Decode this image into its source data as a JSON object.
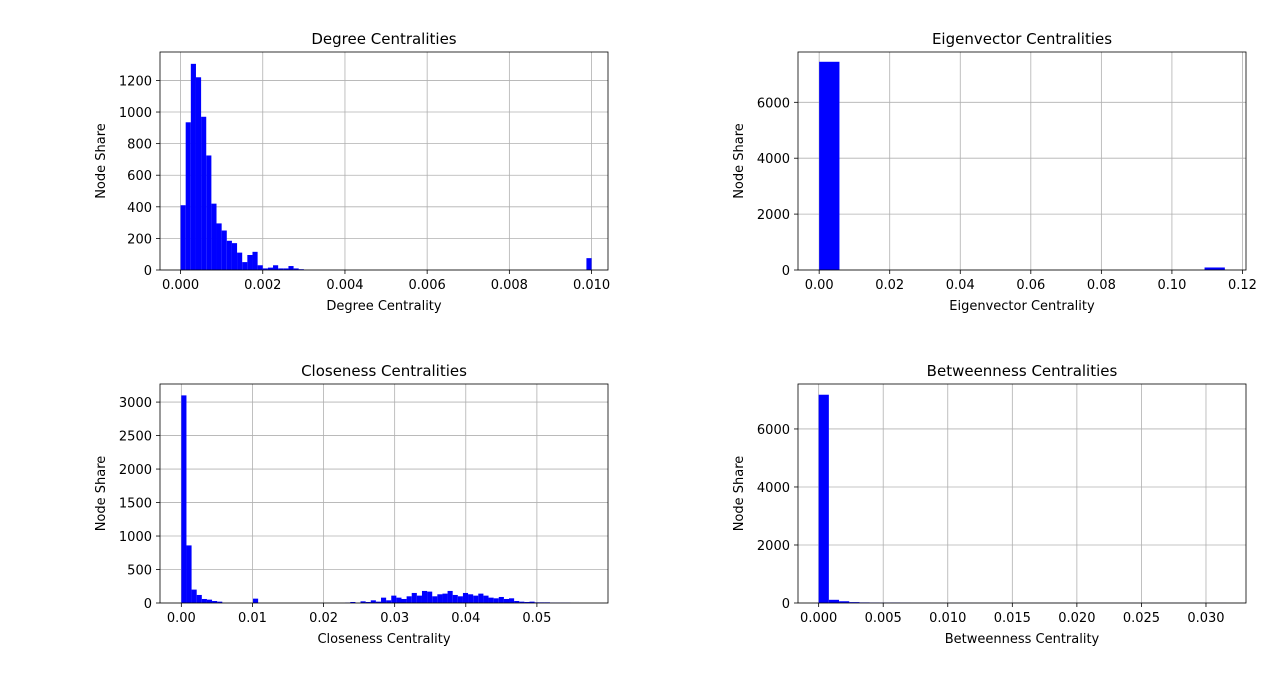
{
  "chart_data": [
    {
      "type": "bar",
      "title": "Degree Centralities",
      "xlabel": "Degree Centrality",
      "ylabel": "Node Share",
      "xlim": [
        -0.0005,
        0.0104
      ],
      "ylim": [
        0,
        1380
      ],
      "xticks": [
        0.0,
        0.002,
        0.004,
        0.006,
        0.008,
        0.01
      ],
      "xtick_labels": [
        "0.000",
        "0.002",
        "0.004",
        "0.006",
        "0.008",
        "0.010"
      ],
      "yticks": [
        0,
        200,
        400,
        600,
        800,
        1000,
        1200
      ],
      "ytick_labels": [
        "0",
        "200",
        "400",
        "600",
        "800",
        "1000",
        "1200"
      ],
      "grid": true,
      "bin_start": 0.0,
      "bin_width": 0.000125,
      "values": [
        410,
        935,
        1305,
        1220,
        970,
        725,
        420,
        295,
        250,
        185,
        170,
        110,
        50,
        95,
        115,
        30,
        10,
        15,
        30,
        10,
        10,
        25,
        10,
        5,
        0,
        0,
        0,
        0,
        0,
        0,
        0,
        0,
        0,
        0,
        0,
        0,
        0,
        0,
        0,
        0,
        0,
        0,
        0,
        0,
        0,
        0,
        0,
        0,
        0,
        0,
        0,
        0,
        0,
        0,
        0,
        0,
        0,
        0,
        0,
        0,
        0,
        0,
        0,
        0,
        0,
        0,
        0,
        0,
        0,
        0,
        0,
        0,
        0,
        0,
        0,
        0,
        0,
        0,
        0,
        75
      ],
      "color": "#0000ff"
    },
    {
      "type": "bar",
      "title": "Eigenvector Centralities",
      "xlabel": "Eigenvector Centrality",
      "ylabel": "Node Share",
      "xlim": [
        -0.006,
        0.121
      ],
      "ylim": [
        0,
        7800
      ],
      "xticks": [
        0.0,
        0.02,
        0.04,
        0.06,
        0.08,
        0.1,
        0.12
      ],
      "xtick_labels": [
        "0.00",
        "0.02",
        "0.04",
        "0.06",
        "0.08",
        "0.10",
        "0.12"
      ],
      "yticks": [
        0,
        2000,
        4000,
        6000
      ],
      "ytick_labels": [
        "0",
        "2000",
        "4000",
        "6000"
      ],
      "grid": true,
      "bin_start": 0.0,
      "bin_width": 0.00575,
      "values": [
        7450,
        0,
        0,
        0,
        0,
        0,
        0,
        0,
        0,
        0,
        0,
        0,
        0,
        0,
        0,
        0,
        0,
        0,
        0,
        90
      ],
      "color": "#0000ff"
    },
    {
      "type": "bar",
      "title": "Closeness Centralities",
      "xlabel": "Closeness Centrality",
      "ylabel": "Node Share",
      "xlim": [
        -0.003,
        0.06
      ],
      "ylim": [
        0,
        3270
      ],
      "xticks": [
        0.0,
        0.01,
        0.02,
        0.03,
        0.04,
        0.05
      ],
      "xtick_labels": [
        "0.00",
        "0.01",
        "0.02",
        "0.03",
        "0.04",
        "0.05"
      ],
      "yticks": [
        0,
        500,
        1000,
        1500,
        2000,
        2500,
        3000
      ],
      "ytick_labels": [
        "0",
        "500",
        "1000",
        "1500",
        "2000",
        "2500",
        "3000"
      ],
      "grid": true,
      "bin_start": 0.0,
      "bin_width": 0.00072,
      "values": [
        3100,
        860,
        200,
        120,
        60,
        50,
        30,
        20,
        0,
        0,
        0,
        0,
        0,
        0,
        65,
        0,
        0,
        0,
        0,
        0,
        0,
        0,
        0,
        0,
        0,
        0,
        0,
        0,
        0,
        0,
        0,
        0,
        5,
        15,
        0,
        25,
        15,
        40,
        20,
        80,
        40,
        110,
        80,
        60,
        100,
        150,
        110,
        180,
        170,
        100,
        130,
        140,
        180,
        120,
        100,
        150,
        130,
        110,
        140,
        110,
        80,
        70,
        90,
        60,
        70,
        30,
        20,
        15,
        20,
        10,
        10,
        10,
        5,
        5,
        5,
        5,
        0,
        0,
        0,
        0
      ],
      "color": "#0000ff"
    },
    {
      "type": "bar",
      "title": "Betweenness Centralities",
      "xlabel": "Betweenness Centrality",
      "ylabel": "Node Share",
      "xlim": [
        -0.0016,
        0.0331
      ],
      "ylim": [
        0,
        7550
      ],
      "xticks": [
        0.0,
        0.005,
        0.01,
        0.015,
        0.02,
        0.025,
        0.03
      ],
      "xtick_labels": [
        "0.000",
        "0.005",
        "0.010",
        "0.015",
        "0.020",
        "0.025",
        "0.030"
      ],
      "yticks": [
        0,
        2000,
        4000,
        6000
      ],
      "ytick_labels": [
        "0",
        "2000",
        "4000",
        "6000"
      ],
      "grid": true,
      "bin_start": 0.0,
      "bin_width": 0.00079,
      "values": [
        7180,
        110,
        60,
        30,
        20,
        15,
        10,
        15,
        8,
        5,
        5,
        3,
        3,
        3,
        3,
        2,
        2,
        2,
        2,
        2,
        2,
        2,
        2,
        2,
        2,
        2,
        2,
        2,
        2,
        2,
        2,
        2,
        2,
        2,
        2,
        2,
        2,
        2,
        2,
        2
      ],
      "color": "#0000ff"
    }
  ]
}
